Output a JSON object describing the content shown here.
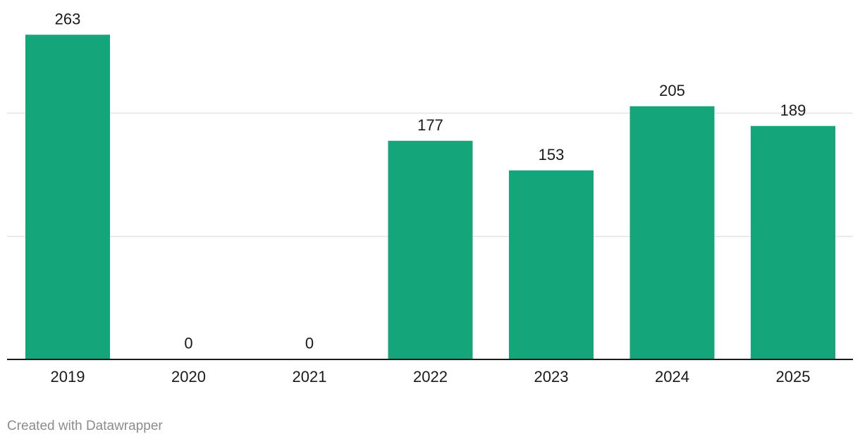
{
  "chart_data": {
    "type": "bar",
    "title": "",
    "xlabel": "",
    "ylabel": "",
    "categories": [
      "2019",
      "2020",
      "2021",
      "2022",
      "2023",
      "2024",
      "2025"
    ],
    "values": [
      263,
      0,
      0,
      177,
      153,
      205,
      189
    ],
    "data_labels": [
      "263",
      "0",
      "0",
      "177",
      "153",
      "205",
      "189"
    ],
    "ylim": [
      0,
      300
    ],
    "gridlines": [
      100,
      200
    ],
    "grid": true,
    "bar_color": "#14a67a"
  },
  "footer": {
    "credit": "Created with Datawrapper"
  }
}
